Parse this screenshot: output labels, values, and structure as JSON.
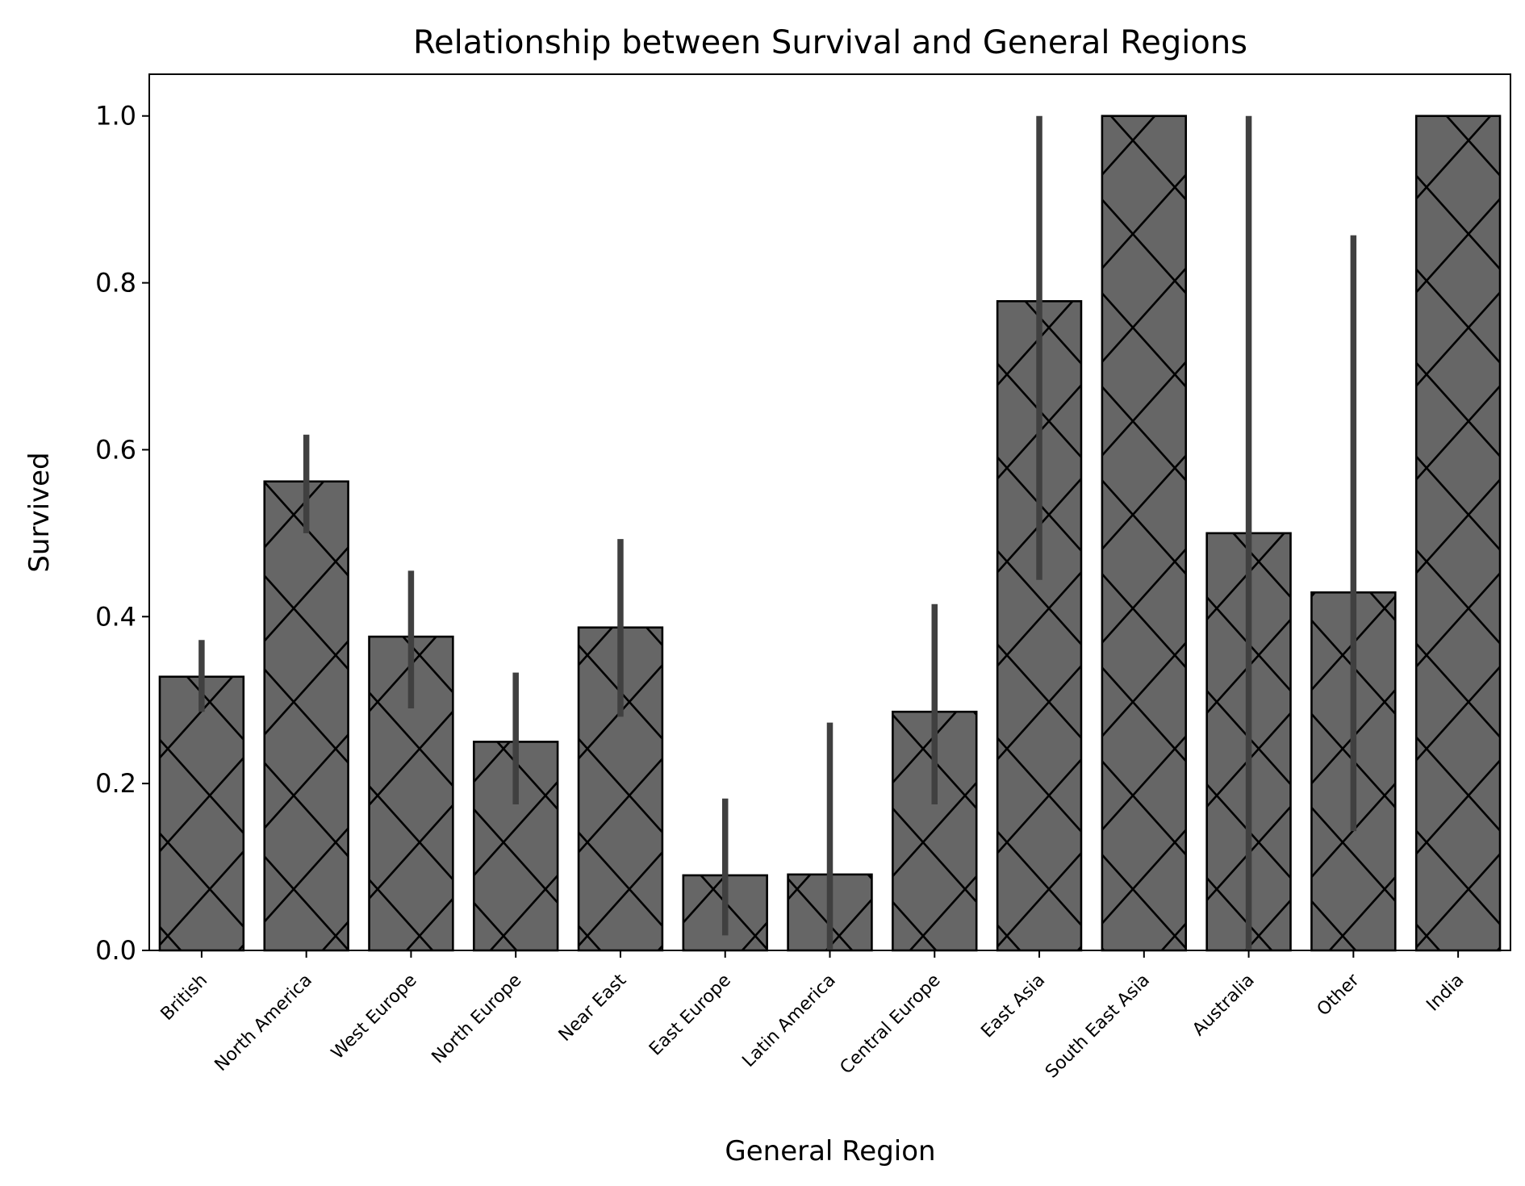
{
  "chart_data": {
    "type": "bar",
    "title": "Relationship between Survival and General Regions",
    "xlabel": "General Region",
    "ylabel": "Survived",
    "ylim": [
      0,
      1.05
    ],
    "yticks": [
      0.0,
      0.2,
      0.4,
      0.6,
      0.8,
      1.0
    ],
    "ytick_labels": [
      "0.0",
      "0.2",
      "0.4",
      "0.6",
      "0.8",
      "1.0"
    ],
    "categories": [
      "British",
      "North America",
      "West Europe",
      "North Europe",
      "Near East",
      "East Europe",
      "Latin America",
      "Central Europe",
      "East Asia",
      "South East Asia",
      "Australia",
      "Other",
      "India"
    ],
    "values": [
      0.328,
      0.562,
      0.376,
      0.25,
      0.387,
      0.09,
      0.091,
      0.286,
      0.778,
      1.0,
      0.5,
      0.429,
      1.0
    ],
    "error_bars": [
      [
        0.286,
        0.372
      ],
      [
        0.5,
        0.618
      ],
      [
        0.29,
        0.455
      ],
      [
        0.175,
        0.333
      ],
      [
        0.28,
        0.493
      ],
      [
        0.018,
        0.182
      ],
      [
        0.0,
        0.273
      ],
      [
        0.175,
        0.415
      ],
      [
        0.444,
        1.0
      ],
      [
        1.0,
        1.0
      ],
      [
        0.0,
        1.0
      ],
      [
        0.143,
        0.857
      ],
      [
        1.0,
        1.0
      ]
    ],
    "bar_color": "#666666",
    "edge_color": "#000000",
    "error_color": "#404040",
    "hatch": "x",
    "grid": false,
    "legend": "none"
  }
}
